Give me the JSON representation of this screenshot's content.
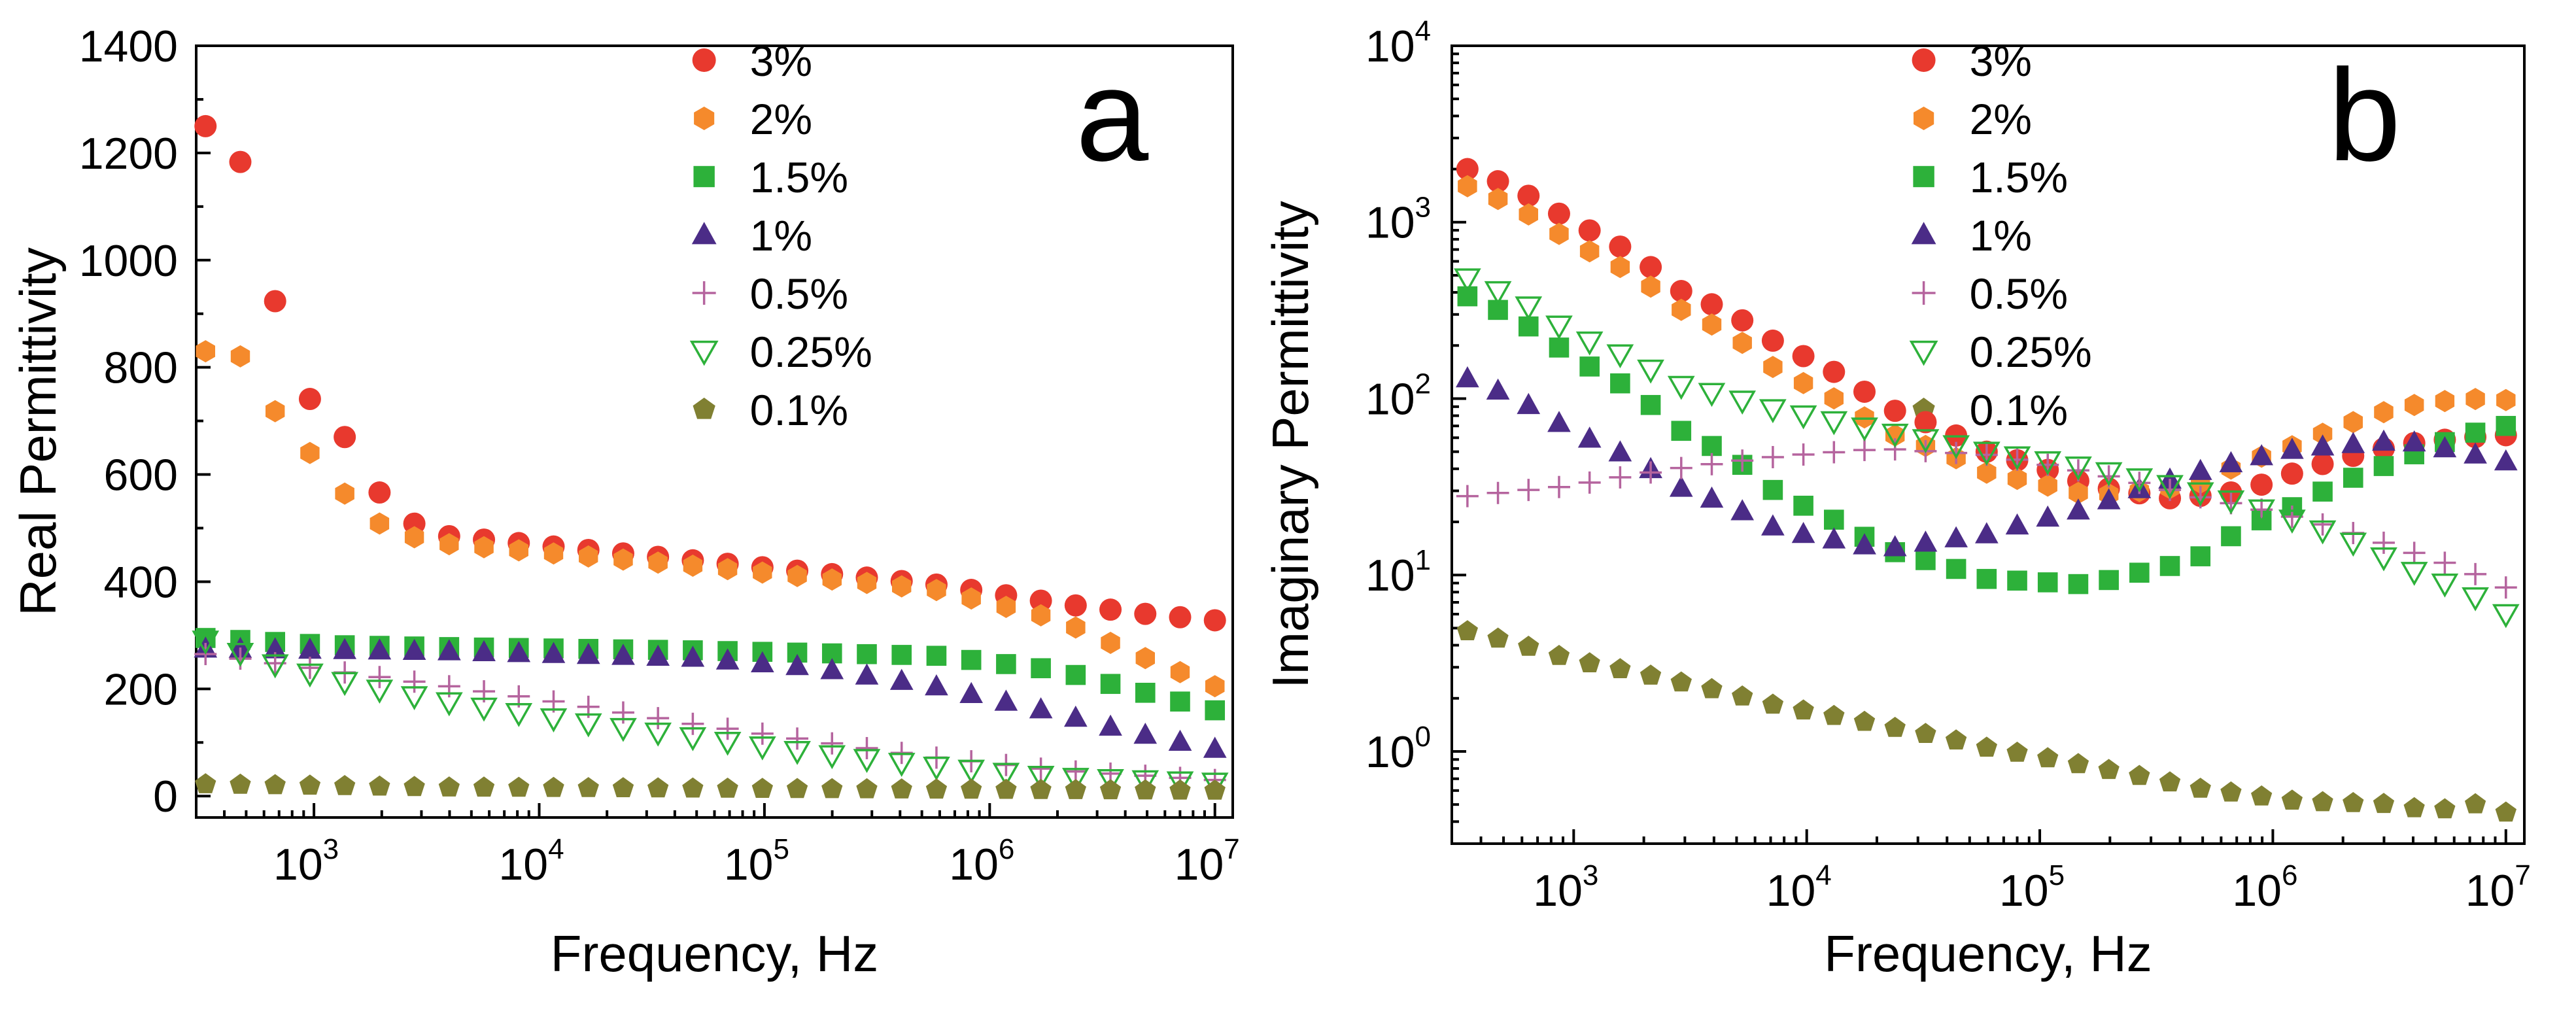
{
  "chart_data": [
    {
      "type": "scatter",
      "panel_label": "a",
      "xscale": "log",
      "yscale": "linear",
      "xlabel": "Frequency, Hz",
      "ylabel": "Real Permittivity",
      "xlim": [
        300,
        12000000
      ],
      "ylim": [
        -40,
        1400
      ],
      "x_ticks": [
        {
          "base": "10",
          "exp": "3",
          "value": 1000
        },
        {
          "base": "10",
          "exp": "4",
          "value": 10000
        },
        {
          "base": "10",
          "exp": "5",
          "value": 100000
        },
        {
          "base": "10",
          "exp": "6",
          "value": 1000000
        },
        {
          "base": "10",
          "exp": "7",
          "value": 10000000
        }
      ],
      "y_ticks": [
        "0",
        "200",
        "400",
        "600",
        "800",
        "1000",
        "1200",
        "1400"
      ],
      "legend_position": "top-center",
      "series": [
        {
          "name": "3%",
          "color": "#e8392e",
          "marker": "circle",
          "y_points": [
            [
              0,
              1250
            ],
            [
              0.3,
              1180
            ],
            [
              0.5,
              985
            ],
            [
              0.7,
              815
            ],
            [
              1.0,
              675
            ],
            [
              1.2,
              668
            ],
            [
              1.4,
              575
            ],
            [
              1.6,
              520
            ],
            [
              1.8,
              500
            ],
            [
              2.0,
              485
            ],
            [
              4.0,
              440
            ],
            [
              6.0,
              395
            ],
            [
              7.0,
              360
            ],
            [
              7.8,
              338
            ],
            [
              8.3,
              328
            ]
          ]
        },
        {
          "name": "2%",
          "color": "#f58a2c",
          "marker": "hexagon",
          "y_points": [
            [
              0,
              830
            ],
            [
              0.3,
              820
            ],
            [
              0.5,
              738
            ],
            [
              0.7,
              683
            ],
            [
              1.0,
              602
            ],
            [
              1.2,
              550
            ],
            [
              1.4,
              512
            ],
            [
              1.6,
              490
            ],
            [
              1.8,
              478
            ],
            [
              2.0,
              470
            ],
            [
              4.0,
              430
            ],
            [
              6.0,
              385
            ],
            [
              7.0,
              330
            ],
            [
              7.7,
              260
            ],
            [
              8.3,
              205
            ]
          ]
        },
        {
          "name": "1.5%",
          "color": "#2db13a",
          "marker": "square",
          "y_points": [
            [
              0,
              295
            ],
            [
              1.0,
              282
            ],
            [
              2.0,
              278
            ],
            [
              4.0,
              272
            ],
            [
              6.0,
              262
            ],
            [
              7.0,
              235
            ],
            [
              7.6,
              200
            ],
            [
              8.3,
              160
            ]
          ]
        },
        {
          "name": "1%",
          "color": "#4b2c87",
          "marker": "triangle",
          "y_points": [
            [
              0,
              275
            ],
            [
              2.0,
              270
            ],
            [
              4.0,
              258
            ],
            [
              5.0,
              240
            ],
            [
              6.0,
              205
            ],
            [
              7.0,
              155
            ],
            [
              7.6,
              120
            ],
            [
              8.3,
              88
            ]
          ]
        },
        {
          "name": "0.5%",
          "color": "#b5649e",
          "marker": "plus",
          "y_points": [
            [
              0,
              265
            ],
            [
              1.0,
              235
            ],
            [
              2.0,
              205
            ],
            [
              3.0,
              172
            ],
            [
              4.0,
              135
            ],
            [
              5.0,
              103
            ],
            [
              6.0,
              72
            ],
            [
              7.0,
              48
            ],
            [
              8.3,
              30
            ]
          ]
        },
        {
          "name": "0.25%",
          "color": "#2db13a",
          "marker": "triangle-down",
          "y_points": [
            [
              0,
              290
            ],
            [
              0.5,
              250
            ],
            [
              1.0,
              220
            ],
            [
              1.5,
              195
            ],
            [
              2.0,
              175
            ],
            [
              3.0,
              140
            ],
            [
              4.0,
              110
            ],
            [
              5.0,
              80
            ],
            [
              6.0,
              55
            ],
            [
              7.0,
              35
            ],
            [
              8.3,
              25
            ]
          ]
        },
        {
          "name": "0.1%",
          "color": "#808032",
          "marker": "pentagon",
          "y_points": [
            [
              0,
              22
            ],
            [
              2.0,
              16
            ],
            [
              5.0,
              13
            ],
            [
              8.3,
              10
            ]
          ]
        }
      ]
    },
    {
      "type": "scatter",
      "panel_label": "b",
      "xscale": "log",
      "yscale": "log",
      "xlabel": "Frequency, Hz",
      "ylabel": "Imaginary Permittivity",
      "xlim": [
        300,
        12000000
      ],
      "ylim": [
        0.3,
        10000
      ],
      "x_ticks": [
        {
          "base": "10",
          "exp": "3",
          "value": 1000
        },
        {
          "base": "10",
          "exp": "4",
          "value": 10000
        },
        {
          "base": "10",
          "exp": "5",
          "value": 100000
        },
        {
          "base": "10",
          "exp": "6",
          "value": 1000000
        },
        {
          "base": "10",
          "exp": "7",
          "value": 10000000
        }
      ],
      "y_ticks": [
        {
          "base": "10",
          "exp": "0",
          "value": 1
        },
        {
          "base": "10",
          "exp": "1",
          "value": 10
        },
        {
          "base": "10",
          "exp": "2",
          "value": 100
        },
        {
          "base": "10",
          "exp": "3",
          "value": 1000
        },
        {
          "base": "10",
          "exp": "4",
          "value": 10000
        }
      ],
      "legend_position": "top-center",
      "series": [
        {
          "name": "3%",
          "color": "#e8392e",
          "marker": "circle",
          "y_points": [
            [
              0,
              2000
            ],
            [
              1.0,
              1000
            ],
            [
              2.0,
              420
            ],
            [
              3.0,
              200
            ],
            [
              4.0,
              90
            ],
            [
              5.0,
              50
            ],
            [
              6.0,
              32
            ],
            [
              6.8,
              27
            ],
            [
              7.5,
              30
            ],
            [
              8.2,
              42
            ],
            [
              9.0,
              55
            ],
            [
              9.6,
              60
            ],
            [
              10.0,
              62
            ]
          ]
        },
        {
          "name": "2%",
          "color": "#f58a2c",
          "marker": "hexagon",
          "y_points": [
            [
              0,
              1600
            ],
            [
              1.0,
              760
            ],
            [
              2.0,
              330
            ],
            [
              3.0,
              140
            ],
            [
              4.0,
              65
            ],
            [
              5.0,
              38
            ],
            [
              6.0,
              28
            ],
            [
              7.0,
              32
            ],
            [
              8.0,
              55
            ],
            [
              9.0,
              90
            ],
            [
              9.6,
              100
            ],
            [
              10.0,
              98
            ]
          ]
        },
        {
          "name": "1.5%",
          "color": "#2db13a",
          "marker": "square",
          "y_points": [
            [
              0,
              380
            ],
            [
              1.0,
              170
            ],
            [
              2.0,
              68
            ],
            [
              3.0,
              28
            ],
            [
              4.0,
              14
            ],
            [
              5.0,
              9.5
            ],
            [
              6.0,
              8.8
            ],
            [
              7.0,
              12
            ],
            [
              8.0,
              25
            ],
            [
              9.0,
              45
            ],
            [
              9.6,
              62
            ],
            [
              10.0,
              70
            ]
          ]
        },
        {
          "name": "1%",
          "color": "#4b2c87",
          "marker": "triangle",
          "y_points": [
            [
              0,
              130
            ],
            [
              1.0,
              65
            ],
            [
              2.0,
              32
            ],
            [
              3.0,
              18
            ],
            [
              4.0,
              14
            ],
            [
              5.0,
              17
            ],
            [
              6.0,
              24
            ],
            [
              7.0,
              38
            ],
            [
              8.0,
              52
            ],
            [
              9.0,
              58
            ],
            [
              10.0,
              44
            ]
          ]
        },
        {
          "name": "0.5%",
          "color": "#b5649e",
          "marker": "plus",
          "y_points": [
            [
              0,
              28
            ],
            [
              1.0,
              32
            ],
            [
              2.0,
              40
            ],
            [
              3.0,
              47
            ],
            [
              4.0,
              52
            ],
            [
              5.0,
              48
            ],
            [
              6.0,
              38
            ],
            [
              7.0,
              28
            ],
            [
              8.0,
              21
            ],
            [
              9.0,
              14
            ],
            [
              10.0,
              8.5
            ]
          ]
        },
        {
          "name": "0.25%",
          "color": "#2db13a",
          "marker": "triangle-down",
          "y_points": [
            [
              0,
              480
            ],
            [
              1.0,
              230
            ],
            [
              2.0,
              120
            ],
            [
              3.0,
              85
            ],
            [
              4.0,
              65
            ],
            [
              5.0,
              50
            ],
            [
              6.0,
              40
            ],
            [
              7.0,
              30
            ],
            [
              8.0,
              20
            ],
            [
              9.0,
              11
            ],
            [
              10.0,
              6
            ]
          ]
        },
        {
          "name": "0.1%",
          "color": "#808032",
          "marker": "pentagon",
          "y_points": [
            [
              0,
              4.8
            ],
            [
              1.0,
              3.3
            ],
            [
              2.0,
              2.5
            ],
            [
              3.0,
              1.8
            ],
            [
              4.0,
              1.4
            ],
            [
              5.0,
              1.05
            ],
            [
              6.0,
              0.82
            ],
            [
              7.0,
              0.62
            ],
            [
              8.0,
              0.52
            ],
            [
              9.0,
              0.5
            ],
            [
              9.3,
              0.44
            ],
            [
              9.6,
              0.52
            ],
            [
              10.0,
              0.45
            ]
          ]
        }
      ]
    }
  ]
}
